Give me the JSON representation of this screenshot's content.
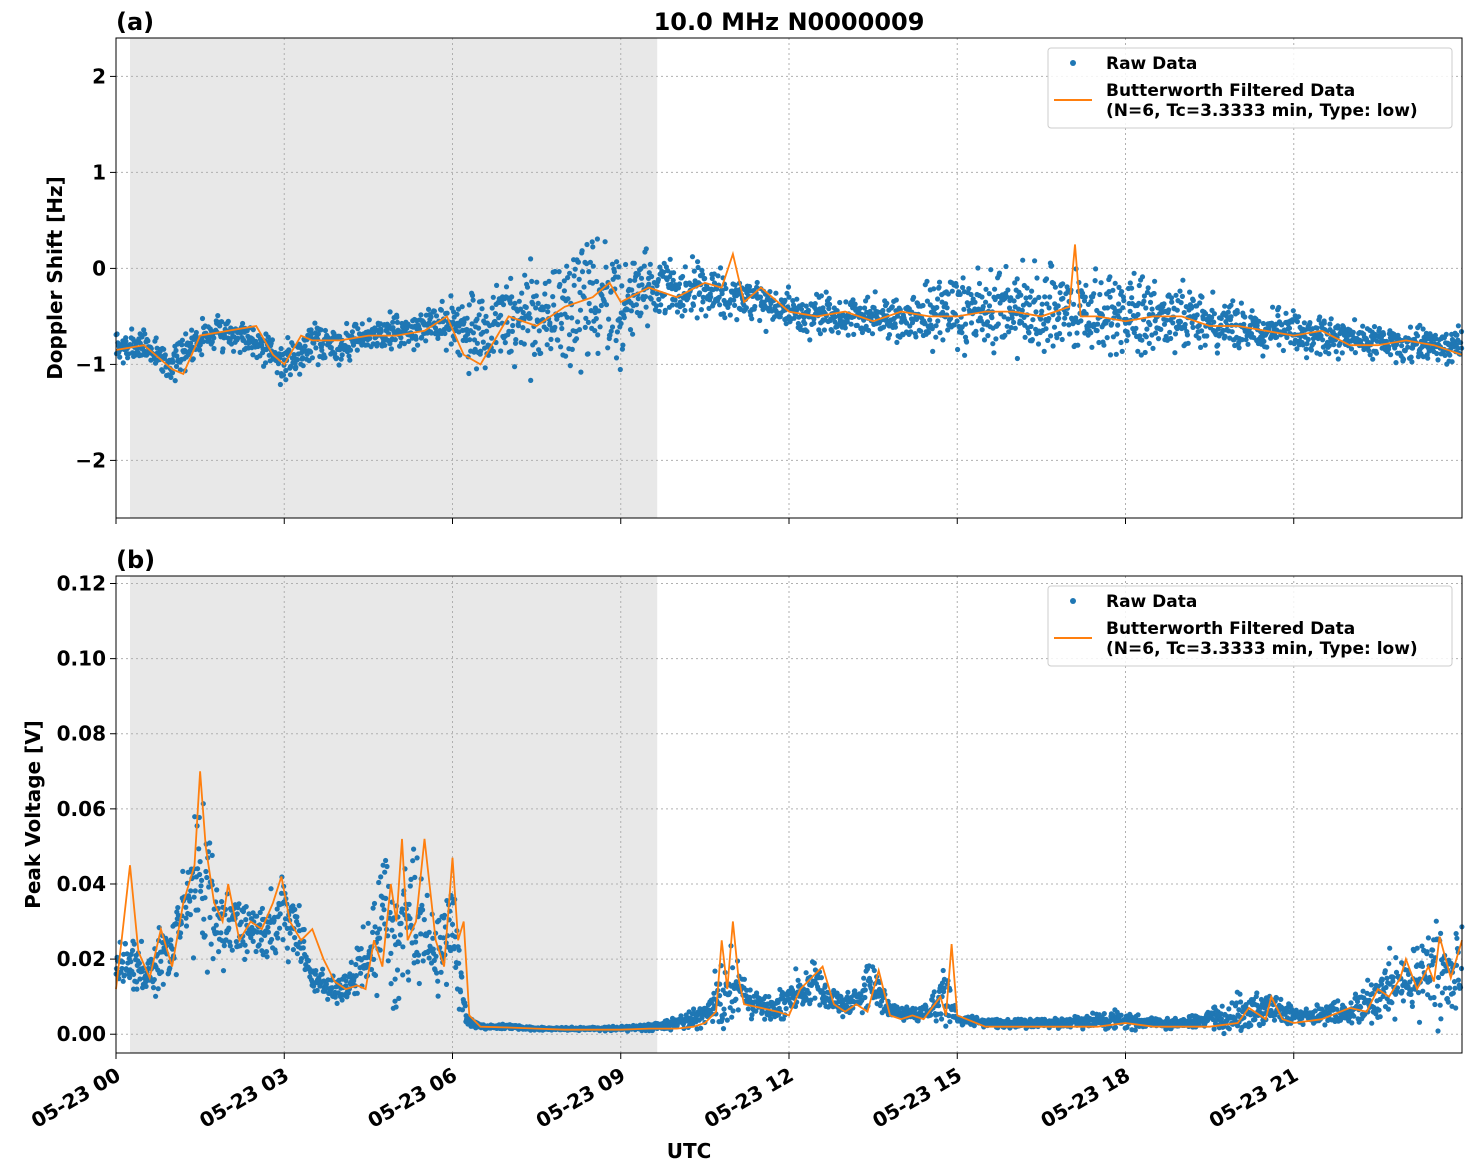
{
  "figure_title": "10.0 MHz N0000009",
  "colors": {
    "raw": "#1f77b4",
    "filtered": "#ff7f0e",
    "night_shade": "#e8e8e8",
    "grid": "#b0b0b0",
    "axes": "#000000"
  },
  "shared_x": {
    "label": "UTC",
    "range_hours": [
      0,
      24
    ],
    "tick_hours": [
      0,
      3,
      6,
      9,
      12,
      15,
      18,
      21
    ],
    "tick_labels": [
      "05-23 00",
      "05-23 03",
      "05-23 06",
      "05-23 09",
      "05-23 12",
      "05-23 15",
      "05-23 18",
      "05-23 21"
    ],
    "shaded_region_hours": [
      0.25,
      9.65
    ]
  },
  "chart_data": [
    {
      "type": "scatter",
      "panel_label": "(a)",
      "title": "10.0 MHz N0000009",
      "xlabel": "",
      "ylabel": "Doppler Shift [Hz]",
      "ylim": [
        -2.6,
        2.4
      ],
      "yticks": [
        -2,
        -1,
        0,
        1,
        2
      ],
      "ytick_labels": [
        "−2",
        "−1",
        "0",
        "1",
        "2"
      ],
      "grid": true,
      "legend": {
        "placement": "top-right",
        "entries": [
          {
            "label": "Raw Data",
            "marker": "dot"
          },
          {
            "label": "Butterworth Filtered Data",
            "label2": "(N=6, Tc=3.3333 min, Type: low)",
            "marker": "line"
          }
        ]
      },
      "series": [
        {
          "name": "Raw Data",
          "style": "scatter",
          "x_hours": [
            0,
            0.5,
            1,
            1.5,
            2,
            2.5,
            3,
            3.5,
            4,
            4.5,
            5,
            5.5,
            6,
            6.5,
            7,
            7.5,
            8,
            8.5,
            9,
            9.5,
            10,
            10.5,
            11,
            11.5,
            12,
            12.5,
            13,
            13.5,
            14,
            14.5,
            15,
            15.5,
            16,
            16.5,
            17,
            17.5,
            18,
            18.5,
            19,
            19.5,
            20,
            20.5,
            21,
            21.5,
            22,
            22.5,
            23,
            23.5,
            24
          ],
          "center": [
            -0.85,
            -0.8,
            -1.0,
            -0.7,
            -0.65,
            -0.75,
            -1.0,
            -0.75,
            -0.8,
            -0.7,
            -0.65,
            -0.6,
            -0.55,
            -0.7,
            -0.55,
            -0.5,
            -0.45,
            -0.35,
            -0.4,
            -0.25,
            -0.2,
            -0.25,
            -0.3,
            -0.35,
            -0.45,
            -0.5,
            -0.5,
            -0.5,
            -0.55,
            -0.5,
            -0.45,
            -0.4,
            -0.4,
            -0.45,
            -0.45,
            -0.45,
            -0.5,
            -0.5,
            -0.55,
            -0.55,
            -0.6,
            -0.65,
            -0.65,
            -0.7,
            -0.75,
            -0.75,
            -0.8,
            -0.8,
            -0.8
          ],
          "spread": [
            0.25,
            0.25,
            0.25,
            0.25,
            0.25,
            0.25,
            0.3,
            0.3,
            0.3,
            0.25,
            0.25,
            0.25,
            0.35,
            0.7,
            0.75,
            0.85,
            0.95,
            0.95,
            0.85,
            0.6,
            0.45,
            0.35,
            0.35,
            0.3,
            0.3,
            0.3,
            0.3,
            0.3,
            0.35,
            0.45,
            0.55,
            0.6,
            0.65,
            0.65,
            0.65,
            0.6,
            0.55,
            0.55,
            0.5,
            0.45,
            0.4,
            0.35,
            0.3,
            0.3,
            0.3,
            0.25,
            0.25,
            0.25,
            0.25
          ]
        },
        {
          "name": "Butterworth Filtered Data",
          "style": "line",
          "x_hours": [
            0,
            0.5,
            1,
            1.2,
            1.5,
            2,
            2.5,
            2.8,
            3,
            3.3,
            3.5,
            4,
            4.5,
            5,
            5.5,
            5.9,
            6.2,
            6.5,
            7,
            7.5,
            8,
            8.5,
            8.8,
            9,
            9.5,
            10,
            10.5,
            10.8,
            11,
            11.2,
            11.5,
            12,
            12.5,
            13,
            13.5,
            14,
            14.5,
            15,
            15.5,
            16,
            16.5,
            17,
            17.1,
            17.2,
            17.5,
            18,
            18.5,
            19,
            19.5,
            20,
            20.5,
            21,
            21.5,
            22,
            22.5,
            23,
            23.5,
            24
          ],
          "y": [
            -0.85,
            -0.8,
            -1.05,
            -1.1,
            -0.7,
            -0.65,
            -0.6,
            -0.9,
            -1.0,
            -0.7,
            -0.75,
            -0.75,
            -0.7,
            -0.7,
            -0.65,
            -0.5,
            -0.9,
            -1.0,
            -0.5,
            -0.6,
            -0.4,
            -0.3,
            -0.15,
            -0.35,
            -0.2,
            -0.3,
            -0.15,
            -0.2,
            0.15,
            -0.35,
            -0.2,
            -0.45,
            -0.5,
            -0.45,
            -0.55,
            -0.45,
            -0.5,
            -0.5,
            -0.45,
            -0.45,
            -0.5,
            -0.4,
            0.25,
            -0.5,
            -0.5,
            -0.55,
            -0.5,
            -0.5,
            -0.6,
            -0.6,
            -0.65,
            -0.7,
            -0.65,
            -0.8,
            -0.8,
            -0.75,
            -0.8,
            -0.9
          ]
        }
      ]
    },
    {
      "type": "scatter",
      "panel_label": "(b)",
      "title": "",
      "xlabel": "UTC",
      "ylabel": "Peak Voltage [V]",
      "ylim": [
        -0.005,
        0.122
      ],
      "yticks": [
        0.0,
        0.02,
        0.04,
        0.06,
        0.08,
        0.1,
        0.12
      ],
      "ytick_labels": [
        "0.00",
        "0.02",
        "0.04",
        "0.06",
        "0.08",
        "0.10",
        "0.12"
      ],
      "grid": true,
      "legend": {
        "placement": "top-right",
        "entries": [
          {
            "label": "Raw Data",
            "marker": "dot"
          },
          {
            "label": "Butterworth Filtered Data",
            "label2": "(N=6, Tc=3.3333 min, Type: low)",
            "marker": "line"
          }
        ]
      },
      "series": [
        {
          "name": "Raw Data",
          "style": "scatter",
          "x_hours": [
            0,
            0.25,
            0.5,
            0.75,
            1,
            1.25,
            1.5,
            1.75,
            2,
            2.25,
            2.5,
            2.75,
            3,
            3.25,
            3.5,
            3.75,
            4,
            4.25,
            4.5,
            4.75,
            5,
            5.25,
            5.5,
            5.75,
            6,
            6.25,
            6.5,
            7,
            7.5,
            8,
            8.5,
            9,
            9.5,
            10,
            10.25,
            10.5,
            10.75,
            11,
            11.25,
            11.5,
            11.75,
            12,
            12.25,
            12.5,
            12.75,
            13,
            13.25,
            13.5,
            13.75,
            14,
            14.25,
            14.5,
            14.75,
            15,
            15.5,
            16,
            16.5,
            17,
            17.5,
            18,
            18.5,
            19,
            19.5,
            20,
            20.5,
            21,
            21.5,
            22,
            22.25,
            22.5,
            22.75,
            23,
            23.25,
            23.5,
            23.75,
            24
          ],
          "center": [
            0.018,
            0.02,
            0.015,
            0.02,
            0.025,
            0.035,
            0.045,
            0.03,
            0.03,
            0.028,
            0.026,
            0.028,
            0.032,
            0.025,
            0.015,
            0.013,
            0.012,
            0.015,
            0.02,
            0.03,
            0.02,
            0.035,
            0.025,
            0.02,
            0.03,
            0.004,
            0.002,
            0.002,
            0.0015,
            0.0015,
            0.0015,
            0.0015,
            0.002,
            0.003,
            0.004,
            0.005,
            0.01,
            0.015,
            0.009,
            0.008,
            0.007,
            0.01,
            0.012,
            0.012,
            0.009,
            0.008,
            0.01,
            0.014,
            0.007,
            0.006,
            0.005,
            0.006,
            0.012,
            0.004,
            0.003,
            0.003,
            0.003,
            0.003,
            0.004,
            0.004,
            0.003,
            0.003,
            0.004,
            0.005,
            0.007,
            0.005,
            0.005,
            0.006,
            0.008,
            0.011,
            0.013,
            0.012,
            0.016,
            0.017,
            0.015,
            0.02
          ],
          "spread": [
            0.01,
            0.012,
            0.01,
            0.012,
            0.015,
            0.022,
            0.035,
            0.02,
            0.015,
            0.012,
            0.012,
            0.015,
            0.018,
            0.012,
            0.006,
            0.005,
            0.005,
            0.008,
            0.015,
            0.025,
            0.02,
            0.03,
            0.015,
            0.015,
            0.025,
            0.003,
            0.0008,
            0.0008,
            0.0006,
            0.0006,
            0.0008,
            0.0008,
            0.0015,
            0.002,
            0.003,
            0.004,
            0.015,
            0.015,
            0.005,
            0.006,
            0.005,
            0.006,
            0.008,
            0.01,
            0.005,
            0.005,
            0.006,
            0.01,
            0.004,
            0.003,
            0.003,
            0.004,
            0.015,
            0.002,
            0.0015,
            0.002,
            0.002,
            0.002,
            0.003,
            0.004,
            0.002,
            0.002,
            0.003,
            0.008,
            0.006,
            0.003,
            0.004,
            0.006,
            0.007,
            0.01,
            0.012,
            0.01,
            0.015,
            0.018,
            0.015,
            0.02
          ]
        },
        {
          "name": "Butterworth Filtered Data",
          "style": "line",
          "x_hours": [
            0,
            0.1,
            0.25,
            0.4,
            0.6,
            0.8,
            1,
            1.2,
            1.4,
            1.5,
            1.6,
            1.75,
            1.9,
            2,
            2.2,
            2.4,
            2.6,
            2.8,
            2.95,
            3.1,
            3.3,
            3.5,
            3.7,
            3.9,
            4.1,
            4.3,
            4.45,
            4.6,
            4.75,
            4.9,
            5,
            5.1,
            5.2,
            5.35,
            5.5,
            5.7,
            5.85,
            6,
            6.1,
            6.2,
            6.3,
            6.5,
            7,
            7.5,
            8,
            8.5,
            9,
            9.5,
            10,
            10.3,
            10.5,
            10.7,
            10.8,
            10.9,
            11,
            11.1,
            11.2,
            11.5,
            11.8,
            12,
            12.2,
            12.4,
            12.6,
            12.8,
            13,
            13.2,
            13.4,
            13.6,
            13.8,
            14,
            14.2,
            14.4,
            14.6,
            14.7,
            14.8,
            14.9,
            15,
            15.5,
            16,
            16.5,
            17,
            17.5,
            18,
            18.5,
            19,
            19.5,
            20,
            20.2,
            20.5,
            20.6,
            20.8,
            21,
            21.5,
            22,
            22.3,
            22.5,
            22.7,
            22.9,
            23,
            23.2,
            23.4,
            23.5,
            23.6,
            23.8,
            24
          ],
          "y": [
            0.012,
            0.025,
            0.045,
            0.022,
            0.015,
            0.028,
            0.018,
            0.035,
            0.045,
            0.07,
            0.05,
            0.035,
            0.03,
            0.04,
            0.025,
            0.03,
            0.028,
            0.035,
            0.042,
            0.03,
            0.025,
            0.028,
            0.02,
            0.014,
            0.012,
            0.013,
            0.012,
            0.025,
            0.018,
            0.04,
            0.03,
            0.052,
            0.025,
            0.03,
            0.052,
            0.025,
            0.018,
            0.047,
            0.025,
            0.03,
            0.005,
            0.002,
            0.0018,
            0.0015,
            0.0012,
            0.0012,
            0.0012,
            0.0015,
            0.0015,
            0.002,
            0.003,
            0.006,
            0.025,
            0.012,
            0.03,
            0.015,
            0.008,
            0.007,
            0.006,
            0.005,
            0.012,
            0.015,
            0.018,
            0.008,
            0.006,
            0.008,
            0.006,
            0.017,
            0.005,
            0.004,
            0.005,
            0.004,
            0.008,
            0.01,
            0.005,
            0.024,
            0.005,
            0.002,
            0.002,
            0.002,
            0.002,
            0.002,
            0.003,
            0.002,
            0.002,
            0.002,
            0.003,
            0.007,
            0.004,
            0.01,
            0.004,
            0.003,
            0.004,
            0.007,
            0.006,
            0.012,
            0.01,
            0.015,
            0.02,
            0.012,
            0.018,
            0.014,
            0.026,
            0.015,
            0.025
          ]
        }
      ]
    }
  ]
}
